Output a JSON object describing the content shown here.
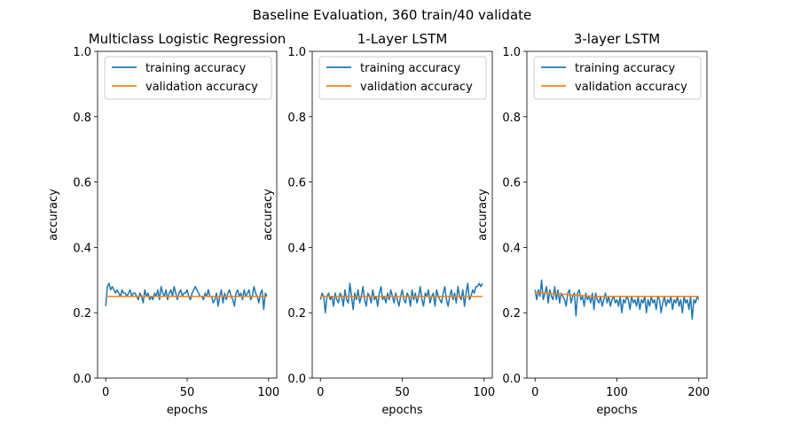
{
  "figure": {
    "suptitle": "Baseline Evaluation, 360 train/40 validate"
  },
  "colors": {
    "training": "#1f77b4",
    "validation": "#ff7f0e",
    "axes": "#000000",
    "background": "#ffffff"
  },
  "chart_data": [
    {
      "type": "line",
      "title": "Multiclass Logistic Regression",
      "xlabel": "epochs",
      "ylabel": "accuracy",
      "xlim": [
        -5,
        105
      ],
      "ylim": [
        0,
        1
      ],
      "xticks": [
        0,
        50,
        100
      ],
      "yticks": [
        "0.0",
        "0.2",
        "0.4",
        "0.6",
        "0.8",
        "1.0"
      ],
      "legend": {
        "position": "top-left",
        "entries": [
          "training accuracy",
          "validation accuracy"
        ]
      },
      "grid": false,
      "series": [
        {
          "name": "training accuracy",
          "x_start": 0,
          "x_step": 1,
          "values": [
            0.22,
            0.28,
            0.29,
            0.27,
            0.28,
            0.27,
            0.26,
            0.27,
            0.26,
            0.25,
            0.27,
            0.26,
            0.26,
            0.25,
            0.26,
            0.27,
            0.25,
            0.26,
            0.26,
            0.25,
            0.24,
            0.26,
            0.25,
            0.23,
            0.27,
            0.25,
            0.26,
            0.24,
            0.25,
            0.24,
            0.26,
            0.25,
            0.27,
            0.24,
            0.28,
            0.26,
            0.25,
            0.27,
            0.24,
            0.26,
            0.27,
            0.25,
            0.28,
            0.26,
            0.24,
            0.26,
            0.27,
            0.25,
            0.26,
            0.26,
            0.27,
            0.25,
            0.24,
            0.26,
            0.27,
            0.28,
            0.27,
            0.26,
            0.25,
            0.25,
            0.24,
            0.26,
            0.25,
            0.27,
            0.25,
            0.25,
            0.23,
            0.24,
            0.26,
            0.22,
            0.25,
            0.27,
            0.23,
            0.26,
            0.24,
            0.26,
            0.27,
            0.25,
            0.24,
            0.22,
            0.26,
            0.27,
            0.25,
            0.26,
            0.24,
            0.27,
            0.25,
            0.26,
            0.27,
            0.24,
            0.25,
            0.28,
            0.26,
            0.25,
            0.23,
            0.26,
            0.27,
            0.21,
            0.26,
            0.25
          ]
        },
        {
          "name": "validation accuracy",
          "x_start": 0,
          "x_step": 1,
          "values": [
            0.25,
            0.25,
            0.25,
            0.25,
            0.25,
            0.25,
            0.25,
            0.25,
            0.25,
            0.25,
            0.25,
            0.25,
            0.25,
            0.25,
            0.25,
            0.25,
            0.25,
            0.25,
            0.25,
            0.25,
            0.25,
            0.25,
            0.25,
            0.25,
            0.25,
            0.25,
            0.25,
            0.25,
            0.25,
            0.25,
            0.25,
            0.25,
            0.25,
            0.25,
            0.25,
            0.25,
            0.25,
            0.25,
            0.25,
            0.25,
            0.25,
            0.25,
            0.25,
            0.25,
            0.25,
            0.25,
            0.25,
            0.25,
            0.25,
            0.25,
            0.25,
            0.25,
            0.25,
            0.25,
            0.25,
            0.25,
            0.25,
            0.25,
            0.25,
            0.25,
            0.25,
            0.25,
            0.25,
            0.25,
            0.25,
            0.25,
            0.25,
            0.25,
            0.25,
            0.25,
            0.25,
            0.25,
            0.25,
            0.25,
            0.25,
            0.25,
            0.25,
            0.25,
            0.25,
            0.25,
            0.25,
            0.25,
            0.25,
            0.25,
            0.25,
            0.25,
            0.25,
            0.25,
            0.25,
            0.25,
            0.25,
            0.25,
            0.25,
            0.25,
            0.25,
            0.25,
            0.25,
            0.25,
            0.25,
            0.25
          ]
        }
      ]
    },
    {
      "type": "line",
      "title": "1-Layer LSTM",
      "xlabel": "epochs",
      "ylabel": "accuracy",
      "xlim": [
        -5,
        105
      ],
      "ylim": [
        0,
        1
      ],
      "xticks": [
        0,
        50,
        100
      ],
      "yticks": [
        "0.0",
        "0.2",
        "0.4",
        "0.6",
        "0.8",
        "1.0"
      ],
      "legend": {
        "position": "top-left",
        "entries": [
          "training accuracy",
          "validation accuracy"
        ]
      },
      "grid": false,
      "series": [
        {
          "name": "training accuracy",
          "x_start": 0,
          "x_step": 1,
          "values": [
            0.24,
            0.26,
            0.25,
            0.2,
            0.25,
            0.26,
            0.24,
            0.25,
            0.22,
            0.26,
            0.24,
            0.23,
            0.26,
            0.25,
            0.22,
            0.27,
            0.24,
            0.23,
            0.29,
            0.25,
            0.21,
            0.26,
            0.24,
            0.27,
            0.23,
            0.25,
            0.28,
            0.24,
            0.22,
            0.26,
            0.25,
            0.23,
            0.27,
            0.24,
            0.25,
            0.22,
            0.26,
            0.28,
            0.24,
            0.25,
            0.23,
            0.26,
            0.24,
            0.27,
            0.25,
            0.23,
            0.26,
            0.24,
            0.22,
            0.25,
            0.27,
            0.24,
            0.23,
            0.26,
            0.25,
            0.22,
            0.27,
            0.24,
            0.26,
            0.23,
            0.25,
            0.28,
            0.24,
            0.22,
            0.26,
            0.25,
            0.27,
            0.23,
            0.25,
            0.26,
            0.22,
            0.27,
            0.25,
            0.24,
            0.23,
            0.26,
            0.28,
            0.24,
            0.22,
            0.25,
            0.27,
            0.24,
            0.26,
            0.23,
            0.28,
            0.25,
            0.24,
            0.27,
            0.22,
            0.26,
            0.29,
            0.24,
            0.25,
            0.27,
            0.26,
            0.28,
            0.28,
            0.29,
            0.28,
            0.29
          ]
        },
        {
          "name": "validation accuracy",
          "x_start": 0,
          "x_step": 1,
          "values": [
            0.25,
            0.25,
            0.25,
            0.25,
            0.25,
            0.25,
            0.25,
            0.25,
            0.25,
            0.25,
            0.25,
            0.25,
            0.25,
            0.25,
            0.25,
            0.25,
            0.25,
            0.25,
            0.25,
            0.25,
            0.25,
            0.25,
            0.25,
            0.25,
            0.25,
            0.25,
            0.25,
            0.25,
            0.25,
            0.25,
            0.25,
            0.25,
            0.25,
            0.25,
            0.25,
            0.25,
            0.25,
            0.25,
            0.25,
            0.25,
            0.25,
            0.25,
            0.25,
            0.25,
            0.25,
            0.25,
            0.25,
            0.25,
            0.25,
            0.25,
            0.25,
            0.25,
            0.25,
            0.25,
            0.25,
            0.25,
            0.25,
            0.25,
            0.25,
            0.25,
            0.25,
            0.25,
            0.25,
            0.25,
            0.25,
            0.25,
            0.25,
            0.25,
            0.25,
            0.25,
            0.25,
            0.25,
            0.25,
            0.25,
            0.25,
            0.25,
            0.25,
            0.25,
            0.25,
            0.25,
            0.25,
            0.25,
            0.25,
            0.25,
            0.25,
            0.25,
            0.25,
            0.25,
            0.25,
            0.25,
            0.25,
            0.25,
            0.25,
            0.25,
            0.25,
            0.25,
            0.25,
            0.25,
            0.25,
            0.25
          ]
        }
      ]
    },
    {
      "type": "line",
      "title": "3-layer LSTM",
      "xlabel": "epochs",
      "ylabel": "accuracy",
      "xlim": [
        -10,
        210
      ],
      "ylim": [
        0,
        1
      ],
      "xticks": [
        0,
        100,
        200
      ],
      "yticks": [
        "0.0",
        "0.2",
        "0.4",
        "0.6",
        "0.8",
        "1.0"
      ],
      "legend": {
        "position": "top-left",
        "entries": [
          "training accuracy",
          "validation accuracy"
        ]
      },
      "grid": false,
      "series": [
        {
          "name": "training accuracy",
          "x_start": 0,
          "x_step": 2,
          "values": [
            0.27,
            0.24,
            0.27,
            0.25,
            0.3,
            0.24,
            0.26,
            0.28,
            0.23,
            0.27,
            0.25,
            0.24,
            0.28,
            0.24,
            0.27,
            0.23,
            0.26,
            0.25,
            0.24,
            0.22,
            0.26,
            0.27,
            0.23,
            0.25,
            0.26,
            0.19,
            0.26,
            0.27,
            0.24,
            0.25,
            0.22,
            0.26,
            0.24,
            0.25,
            0.23,
            0.26,
            0.21,
            0.26,
            0.24,
            0.23,
            0.25,
            0.22,
            0.24,
            0.26,
            0.23,
            0.25,
            0.22,
            0.24,
            0.25,
            0.23,
            0.24,
            0.22,
            0.25,
            0.2,
            0.24,
            0.23,
            0.25,
            0.24,
            0.21,
            0.25,
            0.23,
            0.24,
            0.22,
            0.25,
            0.21,
            0.24,
            0.23,
            0.25,
            0.2,
            0.24,
            0.22,
            0.25,
            0.23,
            0.24,
            0.21,
            0.25,
            0.24,
            0.2,
            0.23,
            0.25,
            0.22,
            0.24,
            0.23,
            0.25,
            0.21,
            0.24,
            0.23,
            0.25,
            0.22,
            0.24,
            0.2,
            0.25,
            0.23,
            0.24,
            0.21,
            0.25,
            0.18,
            0.24,
            0.23,
            0.25,
            0.24
          ]
        },
        {
          "name": "validation accuracy",
          "x_start": 0,
          "x_step": 2,
          "values": [
            0.262,
            0.262,
            0.261,
            0.261,
            0.261,
            0.26,
            0.26,
            0.26,
            0.259,
            0.259,
            0.259,
            0.258,
            0.258,
            0.258,
            0.257,
            0.257,
            0.257,
            0.256,
            0.256,
            0.256,
            0.255,
            0.255,
            0.255,
            0.254,
            0.254,
            0.254,
            0.253,
            0.253,
            0.253,
            0.252,
            0.252,
            0.252,
            0.251,
            0.251,
            0.251,
            0.25,
            0.25,
            0.25,
            0.25,
            0.25,
            0.25,
            0.25,
            0.25,
            0.25,
            0.25,
            0.25,
            0.25,
            0.25,
            0.25,
            0.25,
            0.25,
            0.25,
            0.25,
            0.25,
            0.25,
            0.25,
            0.25,
            0.25,
            0.25,
            0.25,
            0.25,
            0.25,
            0.25,
            0.25,
            0.25,
            0.25,
            0.25,
            0.25,
            0.25,
            0.25,
            0.25,
            0.25,
            0.25,
            0.25,
            0.25,
            0.25,
            0.25,
            0.25,
            0.25,
            0.25,
            0.25,
            0.25,
            0.25,
            0.25,
            0.25,
            0.25,
            0.25,
            0.25,
            0.25,
            0.25,
            0.25,
            0.25,
            0.25,
            0.25,
            0.25,
            0.25,
            0.25,
            0.25,
            0.25,
            0.25,
            0.25
          ]
        }
      ]
    }
  ]
}
